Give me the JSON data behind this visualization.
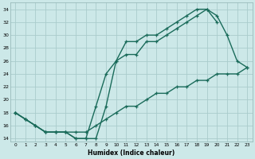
{
  "xlabel": "Humidex (Indice chaleur)",
  "bg_color": "#cce8e8",
  "grid_color": "#aacccc",
  "line_color": "#1a6b5a",
  "xlim": [
    -0.5,
    23.5
  ],
  "ylim": [
    13.5,
    35
  ],
  "xticks": [
    0,
    1,
    2,
    3,
    4,
    5,
    6,
    7,
    8,
    9,
    10,
    11,
    12,
    13,
    14,
    15,
    16,
    17,
    18,
    19,
    20,
    21,
    22,
    23
  ],
  "yticks": [
    14,
    16,
    18,
    20,
    22,
    24,
    26,
    28,
    30,
    32,
    34
  ],
  "line1_x": [
    0,
    1,
    2,
    3,
    4,
    5,
    6,
    7,
    8,
    9,
    10,
    11,
    12,
    13,
    14,
    15,
    16,
    17,
    18,
    19,
    20
  ],
  "line1_y": [
    18,
    17,
    16,
    15,
    15,
    15,
    14,
    14,
    19,
    24,
    26,
    29,
    29,
    30,
    30,
    31,
    32,
    33,
    34,
    34,
    32
  ],
  "line2_x": [
    0,
    1,
    2,
    3,
    4,
    5,
    6,
    7,
    8,
    9,
    10,
    11,
    12,
    13,
    14,
    15,
    16,
    17,
    18,
    19,
    20,
    21,
    22,
    23
  ],
  "line2_y": [
    18,
    17,
    16,
    15,
    15,
    15,
    14,
    14,
    14,
    19,
    26,
    27,
    27,
    29,
    29,
    30,
    31,
    32,
    33,
    34,
    33,
    30,
    26,
    25
  ],
  "line3_x": [
    0,
    1,
    2,
    3,
    4,
    5,
    6,
    7,
    8,
    9,
    10,
    11,
    12,
    13,
    14,
    15,
    16,
    17,
    18,
    19,
    20,
    21,
    22,
    23
  ],
  "line3_y": [
    18,
    17,
    16,
    15,
    15,
    15,
    15,
    15,
    16,
    17,
    18,
    19,
    19,
    20,
    21,
    21,
    22,
    22,
    23,
    23,
    24,
    24,
    24,
    25
  ]
}
